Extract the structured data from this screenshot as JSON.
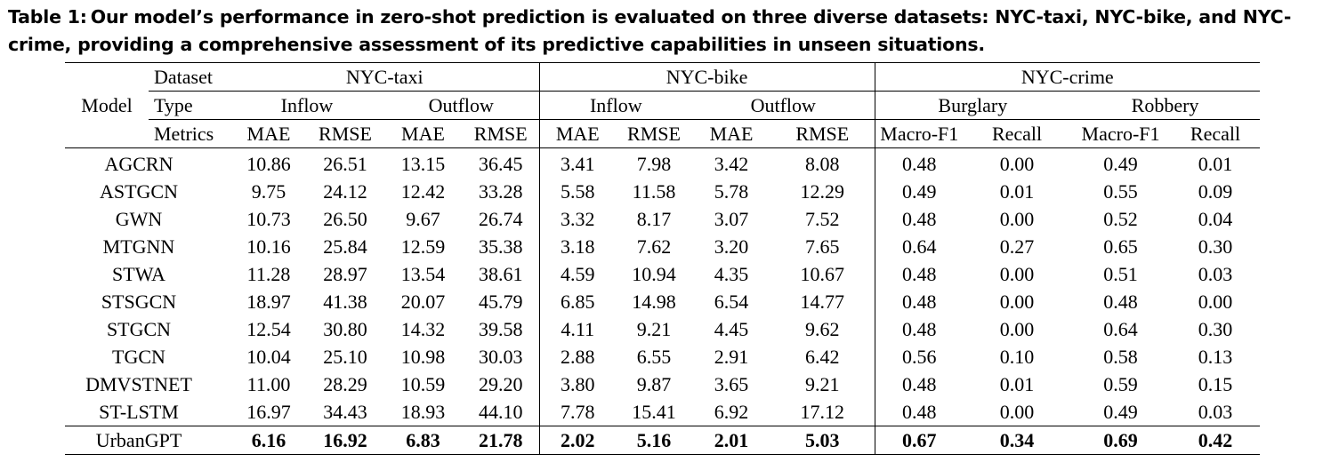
{
  "caption": {
    "label": "Table 1:",
    "text": "Our model’s performance in zero-shot prediction is evaluated on three diverse datasets: NYC-taxi, NYC-bike, and NYC-crime, providing a comprehensive assessment of its predictive capabilities in unseen situations."
  },
  "header": {
    "model": "Model",
    "dataset_label": "Dataset",
    "type_label": "Type",
    "metrics_label": "Metrics",
    "datasets": [
      "NYC-taxi",
      "NYC-bike",
      "NYC-crime"
    ],
    "types": [
      "Inflow",
      "Outflow",
      "Inflow",
      "Outflow",
      "Burglary",
      "Robbery"
    ],
    "metrics": [
      "MAE",
      "RMSE",
      "MAE",
      "RMSE",
      "MAE",
      "RMSE",
      "MAE",
      "RMSE",
      "Macro-F1",
      "Recall",
      "Macro-F1",
      "Recall"
    ]
  },
  "rows": [
    {
      "model": "AGCRN",
      "values": [
        "10.86",
        "26.51",
        "13.15",
        "36.45",
        "3.41",
        "7.98",
        "3.42",
        "8.08",
        "0.48",
        "0.00",
        "0.49",
        "0.01"
      ]
    },
    {
      "model": "ASTGCN",
      "values": [
        "9.75",
        "24.12",
        "12.42",
        "33.28",
        "5.58",
        "11.58",
        "5.78",
        "12.29",
        "0.49",
        "0.01",
        "0.55",
        "0.09"
      ]
    },
    {
      "model": "GWN",
      "values": [
        "10.73",
        "26.50",
        "9.67",
        "26.74",
        "3.32",
        "8.17",
        "3.07",
        "7.52",
        "0.48",
        "0.00",
        "0.52",
        "0.04"
      ]
    },
    {
      "model": "MTGNN",
      "values": [
        "10.16",
        "25.84",
        "12.59",
        "35.38",
        "3.18",
        "7.62",
        "3.20",
        "7.65",
        "0.64",
        "0.27",
        "0.65",
        "0.30"
      ]
    },
    {
      "model": "STWA",
      "values": [
        "11.28",
        "28.97",
        "13.54",
        "38.61",
        "4.59",
        "10.94",
        "4.35",
        "10.67",
        "0.48",
        "0.00",
        "0.51",
        "0.03"
      ]
    },
    {
      "model": "STSGCN",
      "values": [
        "18.97",
        "41.38",
        "20.07",
        "45.79",
        "6.85",
        "14.98",
        "6.54",
        "14.77",
        "0.48",
        "0.00",
        "0.48",
        "0.00"
      ]
    },
    {
      "model": "STGCN",
      "values": [
        "12.54",
        "30.80",
        "14.32",
        "39.58",
        "4.11",
        "9.21",
        "4.45",
        "9.62",
        "0.48",
        "0.00",
        "0.64",
        "0.30"
      ]
    },
    {
      "model": "TGCN",
      "values": [
        "10.04",
        "25.10",
        "10.98",
        "30.03",
        "2.88",
        "6.55",
        "2.91",
        "6.42",
        "0.56",
        "0.10",
        "0.58",
        "0.13"
      ]
    },
    {
      "model": "DMVSTNET",
      "values": [
        "11.00",
        "28.29",
        "10.59",
        "29.20",
        "3.80",
        "9.87",
        "3.65",
        "9.21",
        "0.48",
        "0.01",
        "0.59",
        "0.15"
      ]
    },
    {
      "model": "ST-LSTM",
      "values": [
        "16.97",
        "34.43",
        "18.93",
        "44.10",
        "7.78",
        "15.41",
        "6.92",
        "17.12",
        "0.48",
        "0.00",
        "0.49",
        "0.03"
      ]
    }
  ],
  "ours": {
    "model": "UrbanGPT",
    "values": [
      "6.16",
      "16.92",
      "6.83",
      "21.78",
      "2.02",
      "5.16",
      "2.01",
      "5.03",
      "0.67",
      "0.34",
      "0.69",
      "0.42"
    ]
  }
}
